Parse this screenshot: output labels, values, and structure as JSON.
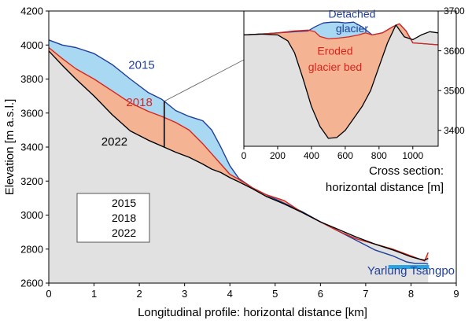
{
  "chart_data": [
    {
      "type": "line",
      "title": "",
      "xlabel": "Longitudinal profile: horizontal distance [km]",
      "ylabel": "Elevation [m a.s.l.]",
      "xlim": [
        0,
        9
      ],
      "ylim": [
        2600,
        4200
      ],
      "xticks": [
        0,
        1,
        2,
        3,
        4,
        5,
        6,
        7,
        8,
        9
      ],
      "yticks": [
        2600,
        2800,
        3000,
        3200,
        3400,
        3600,
        3800,
        4000,
        4200
      ],
      "legend": {
        "position": "bottom-left",
        "entries": [
          "2015",
          "2018",
          "2022"
        ]
      },
      "series": [
        {
          "name": "2015",
          "color": "#1f3f9a",
          "x": [
            0,
            0.3,
            0.6,
            1.0,
            1.4,
            1.8,
            2.2,
            2.5,
            2.8,
            3.1,
            3.4,
            3.6,
            3.8,
            4.0,
            4.2,
            4.5,
            4.8,
            5.2,
            5.6,
            6.0,
            6.4,
            6.8,
            7.2,
            7.6,
            7.9,
            8.1,
            8.3,
            8.38
          ],
          "values": [
            4030,
            4000,
            3985,
            3950,
            3885,
            3800,
            3720,
            3680,
            3615,
            3580,
            3555,
            3500,
            3400,
            3290,
            3215,
            3160,
            3120,
            3070,
            3020,
            2960,
            2905,
            2850,
            2795,
            2760,
            2725,
            2715,
            2715,
            2712
          ]
        },
        {
          "name": "2018",
          "color": "#d9251d",
          "x": [
            0,
            0.3,
            0.6,
            1.0,
            1.4,
            1.8,
            2.2,
            2.5,
            2.8,
            3.1,
            3.4,
            3.6,
            3.8,
            4.0,
            4.2,
            4.5,
            4.8,
            5.2,
            5.6,
            6.0,
            6.4,
            6.8,
            7.2,
            7.6,
            8.0,
            8.2,
            8.3,
            8.38
          ],
          "values": [
            3985,
            3920,
            3860,
            3800,
            3730,
            3660,
            3610,
            3580,
            3545,
            3500,
            3420,
            3360,
            3300,
            3240,
            3210,
            3160,
            3120,
            3085,
            3015,
            2960,
            2905,
            2860,
            2830,
            2800,
            2760,
            2740,
            2730,
            2780
          ]
        },
        {
          "name": "2022",
          "color": "#000000",
          "x": [
            0,
            0.3,
            0.6,
            1.0,
            1.4,
            1.8,
            2.2,
            2.5,
            2.8,
            3.1,
            3.4,
            3.6,
            3.8,
            4.0,
            4.2,
            4.5,
            4.8,
            5.2,
            5.6,
            6.0,
            6.4,
            6.8,
            7.2,
            7.6,
            8.0,
            8.2,
            8.3,
            8.38
          ],
          "values": [
            3965,
            3880,
            3800,
            3700,
            3590,
            3495,
            3440,
            3405,
            3370,
            3340,
            3300,
            3270,
            3250,
            3220,
            3195,
            3155,
            3110,
            3065,
            3015,
            2960,
            2915,
            2870,
            2830,
            2795,
            2755,
            2740,
            2735,
            2745
          ]
        }
      ],
      "annotations": [
        {
          "text": "2015",
          "x": 2.05,
          "y": 3860,
          "color": "#1f3f9a"
        },
        {
          "text": "2018",
          "x": 2.0,
          "y": 3640,
          "color": "#d9251d"
        },
        {
          "text": "2022",
          "x": 1.45,
          "y": 3410,
          "color": "#000000"
        },
        {
          "text": "Yarlung Tsangpo",
          "x": 8.0,
          "y": 2652,
          "color": "#1f3f9a"
        }
      ],
      "cross_section_position_km": 2.55,
      "river_marker": {
        "x_start": 7.5,
        "x_end": 8.4,
        "elevation": 2697,
        "color": "#29a3e0"
      },
      "fill_colors": {
        "terrain": "#e1e1e1",
        "eroded": "#f4b393",
        "ice": "#a9d9f2"
      }
    },
    {
      "type": "line",
      "title": "",
      "xlabel_line1": "Cross section:",
      "xlabel_line2": "horizontal distance [m]",
      "ylabel": "",
      "xlim": [
        0,
        1150
      ],
      "ylim": [
        3360,
        3700
      ],
      "xticks": [
        0,
        200,
        400,
        600,
        800,
        1000
      ],
      "yticks": [
        3400,
        3500,
        3600,
        3700
      ],
      "series": [
        {
          "name": "2015",
          "color": "#1f3f9a",
          "x": [
            0,
            100,
            200,
            300,
            380,
            420,
            470,
            520,
            560,
            600,
            650,
            700,
            760,
            820,
            880,
            920,
            960,
            1000,
            1060,
            1150
          ],
          "values": [
            3640,
            3642,
            3645,
            3648,
            3650,
            3660,
            3670,
            3672,
            3672,
            3670,
            3672,
            3660,
            3640,
            3645,
            3660,
            3668,
            3650,
            3620,
            3618,
            3615
          ]
        },
        {
          "name": "2018",
          "color": "#d9251d",
          "x": [
            0,
            100,
            200,
            300,
            380,
            420,
            450,
            500,
            560,
            620,
            680,
            720,
            760,
            820,
            880,
            920,
            960,
            1000,
            1060,
            1150
          ],
          "values": [
            3640,
            3642,
            3645,
            3650,
            3652,
            3648,
            3636,
            3630,
            3632,
            3635,
            3640,
            3645,
            3640,
            3645,
            3660,
            3668,
            3650,
            3620,
            3618,
            3615
          ]
        },
        {
          "name": "2022",
          "color": "#000000",
          "x": [
            0,
            100,
            200,
            260,
            300,
            350,
            400,
            450,
            500,
            550,
            600,
            650,
            700,
            750,
            800,
            850,
            900,
            950,
            1000,
            1050,
            1100,
            1150
          ],
          "values": [
            3640,
            3642,
            3640,
            3625,
            3595,
            3530,
            3460,
            3410,
            3380,
            3382,
            3400,
            3430,
            3460,
            3500,
            3560,
            3620,
            3665,
            3635,
            3628,
            3640,
            3648,
            3645
          ]
        }
      ],
      "annotations": [
        {
          "text": "Detached",
          "x": 640,
          "y": 3683,
          "color": "#1f3f9a"
        },
        {
          "text": "glacier",
          "x": 640,
          "y": 3647,
          "color": "#1f3f9a"
        },
        {
          "text": "Eroded",
          "x": 540,
          "y": 3590,
          "color": "#d9251d"
        },
        {
          "text": "glacier bed",
          "x": 540,
          "y": 3550,
          "color": "#d9251d"
        }
      ]
    }
  ]
}
